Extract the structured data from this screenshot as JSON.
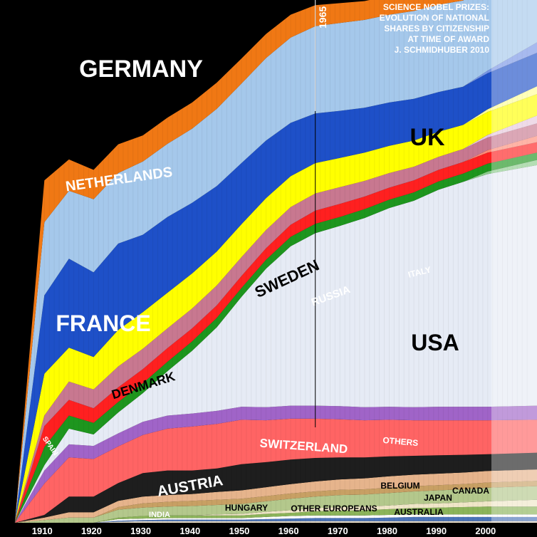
{
  "chart_data": {
    "type": "area",
    "title_lines": [
      "SCIENCE NOBEL PRIZES:",
      "EVOLUTION OF NATIONAL",
      "SHARES BY CITIZENSHIP",
      "AT TIME OF AWARD",
      "J. SCHMIDHUBER 2010"
    ],
    "marker_year": "1965",
    "x_ticks": [
      "1910",
      "1920",
      "1930",
      "1940",
      "1950",
      "1960",
      "1970",
      "1980",
      "1990",
      "2000"
    ],
    "x": [
      1901,
      1904,
      1910,
      1915,
      1920,
      1925,
      1930,
      1935,
      1940,
      1945,
      1950,
      1955,
      1960,
      1965,
      1970,
      1975,
      1980,
      1985,
      1990,
      1995,
      2000,
      2010
    ],
    "note": "",
    "series": [
      {
        "name": "INDIA",
        "color": "#e6dcc8",
        "values": [
          0,
          0,
          0,
          0,
          0,
          0.2,
          0.3,
          0.3,
          0.3,
          0.3,
          0.3,
          0.3,
          0.3,
          0.3,
          0.3,
          0.3,
          0.3,
          0.3,
          0.3,
          0.3,
          0.3,
          0.3
        ]
      },
      {
        "name": "AUSTRALIA",
        "color": "#4a74b8",
        "values": [
          0,
          0,
          0,
          0,
          0,
          0.2,
          0.2,
          0.3,
          0.3,
          0.3,
          0.3,
          0.4,
          0.5,
          0.6,
          0.6,
          0.6,
          0.7,
          0.8,
          0.8,
          0.8,
          0.8,
          0.8
        ]
      },
      {
        "name": "",
        "color": "#ffffff",
        "values": [
          0,
          0,
          0,
          0,
          0,
          0.3,
          0.3,
          0.3,
          0.3,
          0.3,
          0.3,
          0.4,
          0.5,
          0.5,
          0.5,
          0.5,
          0.5,
          0.5,
          0.5,
          0.5,
          0.5,
          0.5
        ]
      },
      {
        "name": "CANADA",
        "color": "#8cb45a",
        "values": [
          0,
          0,
          0,
          0,
          0,
          0.3,
          0.5,
          0.5,
          0.5,
          0.5,
          0.5,
          0.6,
          0.6,
          0.8,
          0.9,
          1.0,
          1.1,
          1.2,
          1.3,
          1.4,
          1.5,
          1.5
        ]
      },
      {
        "name": "JAPAN",
        "color": "#f0e6c8",
        "values": [
          0,
          0,
          0,
          0,
          0,
          0,
          0,
          0,
          0,
          0.2,
          0.3,
          0.4,
          0.5,
          0.6,
          0.7,
          0.7,
          0.7,
          0.8,
          0.8,
          0.9,
          1.0,
          1.3
        ]
      },
      {
        "name": "OTHER EUROPEANS",
        "color": "#b4c88c",
        "values": [
          0,
          0,
          0.5,
          1.0,
          1.0,
          1.5,
          1.6,
          1.7,
          1.8,
          1.8,
          1.9,
          2.0,
          2.2,
          2.2,
          2.3,
          2.3,
          2.4,
          2.4,
          2.5,
          2.5,
          2.6,
          2.6
        ]
      },
      {
        "name": "HUNGARY",
        "color": "#c8a064",
        "values": [
          0,
          0,
          0,
          0,
          0,
          0.5,
          0.8,
          0.9,
          1.0,
          1.0,
          1.0,
          1.0,
          1.0,
          1.0,
          1.0,
          1.0,
          1.0,
          1.0,
          1.0,
          1.0,
          1.0,
          1.0
        ]
      },
      {
        "name": "BELGIUM",
        "color": "#e6b48c",
        "values": [
          0,
          0,
          0.5,
          1.0,
          1.0,
          1.2,
          1.3,
          1.3,
          1.3,
          1.5,
          1.6,
          1.7,
          1.8,
          1.9,
          2.0,
          2.1,
          2.2,
          2.2,
          2.2,
          2.2,
          2.2,
          2.2
        ]
      },
      {
        "name": "AUSTRIA",
        "color": "#1e1e1e",
        "values": [
          0,
          0,
          0.5,
          3.0,
          3.0,
          3.4,
          4.5,
          4.7,
          4.5,
          4.5,
          5.0,
          4.8,
          4.7,
          4.5,
          4.2,
          4.0,
          3.8,
          3.6,
          3.5,
          3.4,
          3.2,
          3.2
        ]
      },
      {
        "name": "SWITZERLAND",
        "color": "#ff6464",
        "values": [
          0,
          0,
          6.0,
          7.5,
          7.2,
          7.0,
          7.3,
          8.0,
          8.4,
          8.5,
          8.5,
          8.0,
          7.8,
          7.5,
          7.3,
          7.1,
          7.0,
          6.8,
          6.7,
          6.6,
          6.5,
          6.3
        ]
      },
      {
        "name": "OTHERS",
        "color": "#a064c8",
        "values": [
          0,
          0,
          2.5,
          2.5,
          2.5,
          2.5,
          2.5,
          2.5,
          2.5,
          2.5,
          2.5,
          2.5,
          2.5,
          2.5,
          2.5,
          2.5,
          2.5,
          2.5,
          2.6,
          2.6,
          2.6,
          2.7
        ]
      },
      {
        "name": "USA",
        "color": "#e6ebf5",
        "values": [
          0,
          0,
          1.0,
          3.0,
          2.2,
          4.0,
          5.5,
          8.5,
          12.0,
          16.0,
          21.0,
          26.5,
          30.5,
          33.0,
          34.5,
          36.2,
          38.0,
          39.5,
          41.5,
          43.0,
          44.5,
          46.0
        ]
      },
      {
        "name": "",
        "color": "#8ccc8c",
        "values": [
          0,
          0,
          0,
          0,
          0,
          0,
          0,
          0,
          0,
          0,
          0,
          0,
          0,
          0,
          0,
          0,
          0,
          0,
          0,
          0,
          0.5,
          1.0
        ]
      },
      {
        "name": "ITALY",
        "color": "#1e961e",
        "values": [
          0,
          0,
          3.5,
          2.5,
          2.2,
          2.0,
          1.9,
          1.8,
          1.8,
          1.8,
          1.7,
          1.7,
          1.8,
          1.8,
          1.7,
          1.7,
          1.6,
          1.6,
          1.6,
          1.6,
          1.5,
          1.4
        ]
      },
      {
        "name": "RUSSIA",
        "color": "#ff2020",
        "values": [
          0,
          0,
          4.0,
          3.0,
          2.8,
          2.8,
          2.7,
          2.6,
          2.5,
          2.4,
          2.3,
          2.2,
          2.3,
          2.5,
          2.5,
          2.4,
          2.3,
          2.3,
          2.2,
          2.2,
          2.1,
          2.0
        ]
      },
      {
        "name": "",
        "color": "#ff8c78",
        "values": [
          0,
          0,
          0,
          0,
          0,
          0,
          0,
          0,
          0,
          0,
          0,
          0,
          0,
          0,
          0,
          0,
          0,
          0,
          0,
          0,
          0.5,
          1.2
        ]
      },
      {
        "name": "DENMARK",
        "color": "#c87890",
        "values": [
          0,
          0,
          2.0,
          3.5,
          3.6,
          4.0,
          3.9,
          3.8,
          3.8,
          3.8,
          3.6,
          3.5,
          3.4,
          3.3,
          3.2,
          3.0,
          2.8,
          2.6,
          2.5,
          2.5,
          2.4,
          2.4
        ]
      },
      {
        "name": "",
        "color": "#e6c8dc",
        "values": [
          0,
          0,
          0,
          0,
          0,
          0,
          0,
          0,
          0,
          0,
          0,
          0,
          0,
          0,
          0,
          0,
          0,
          0,
          0,
          0,
          0.5,
          1.5
        ]
      },
      {
        "name": "SWEDEN",
        "color": "#ffff00",
        "values": [
          0,
          0,
          8.0,
          6.5,
          6.2,
          7.0,
          7.0,
          6.8,
          6.7,
          6.5,
          6.3,
          6.1,
          5.9,
          5.8,
          5.6,
          5.4,
          5.2,
          5.0,
          4.8,
          4.6,
          4.4,
          4.1
        ]
      },
      {
        "name": "",
        "color": "#ffff96",
        "values": [
          0,
          0,
          0,
          0,
          0,
          0,
          0,
          0,
          0,
          0,
          0,
          0,
          0,
          0,
          0,
          0,
          0,
          0,
          0,
          0,
          0.5,
          1.5
        ]
      },
      {
        "name": "FRANCE",
        "color": "#1e50c8",
        "values": [
          0,
          0,
          15.0,
          17.0,
          16.2,
          16.5,
          14.8,
          14.5,
          13.5,
          12.5,
          11.7,
          11.0,
          10.2,
          9.5,
          9.0,
          8.6,
          8.3,
          8.0,
          7.6,
          7.3,
          6.9,
          6.4
        ]
      },
      {
        "name": "",
        "color": "#7896e6",
        "values": [
          0,
          0,
          0,
          0,
          0,
          0,
          0,
          0,
          0,
          0,
          0,
          0,
          0,
          0,
          0,
          0,
          0,
          0,
          0,
          0,
          0.5,
          2.0
        ]
      },
      {
        "name": "UK",
        "color": "#a5c8eb",
        "values": [
          0,
          0,
          14.0,
          13.0,
          14.0,
          13.5,
          14.0,
          14.0,
          14.2,
          14.8,
          15.2,
          15.8,
          16.3,
          16.7,
          16.8,
          16.8,
          16.8,
          16.8,
          16.7,
          16.5,
          16.5,
          15.5
        ]
      },
      {
        "name": "",
        "color": "#ffcfb0",
        "values": [
          0,
          0,
          0,
          0,
          0,
          0,
          0,
          0,
          0,
          0,
          0,
          0,
          0,
          0,
          0,
          0,
          0,
          0,
          0,
          0,
          0.5,
          1.5
        ]
      },
      {
        "name": "NETHERLANDS",
        "color": "#f07814",
        "values": [
          0,
          0,
          8.0,
          6.0,
          5.6,
          5.5,
          5.0,
          5.0,
          5.0,
          5.0,
          4.8,
          4.6,
          4.4,
          4.0,
          3.8,
          3.6,
          3.6,
          3.6,
          3.6,
          3.5,
          3.3,
          3.1
        ]
      },
      {
        "name": "",
        "color": "#ffa878",
        "values": [
          0,
          0,
          0,
          0,
          0,
          0,
          0,
          0,
          0,
          0,
          0,
          0,
          0,
          0,
          0,
          0,
          0,
          0,
          0,
          0,
          0.5,
          1.5
        ]
      }
    ],
    "ylim": [
      0,
      100
    ],
    "remainder_label": "GERMANY",
    "remainder_color": "#000000"
  },
  "labels": {
    "germany": "GERMANY",
    "uk": "UK",
    "netherlands": "NETHERLANDS",
    "france": "FRANCE",
    "sweden": "SWEDEN",
    "russia": "RUSSIA",
    "italy": "ITALY",
    "usa": "USA",
    "denmark": "DENMARK",
    "spain": "SPAIN",
    "switzerland": "SWITZERLAND",
    "others": "OTHERS",
    "austria": "AUSTRIA",
    "belgium": "BELGIUM",
    "japan": "JAPAN",
    "canada": "CANADA",
    "hungary": "HUNGARY",
    "india": "INDIA",
    "other_europeans": "OTHER EUROPEANS",
    "australia": "AUSTRALIA"
  }
}
